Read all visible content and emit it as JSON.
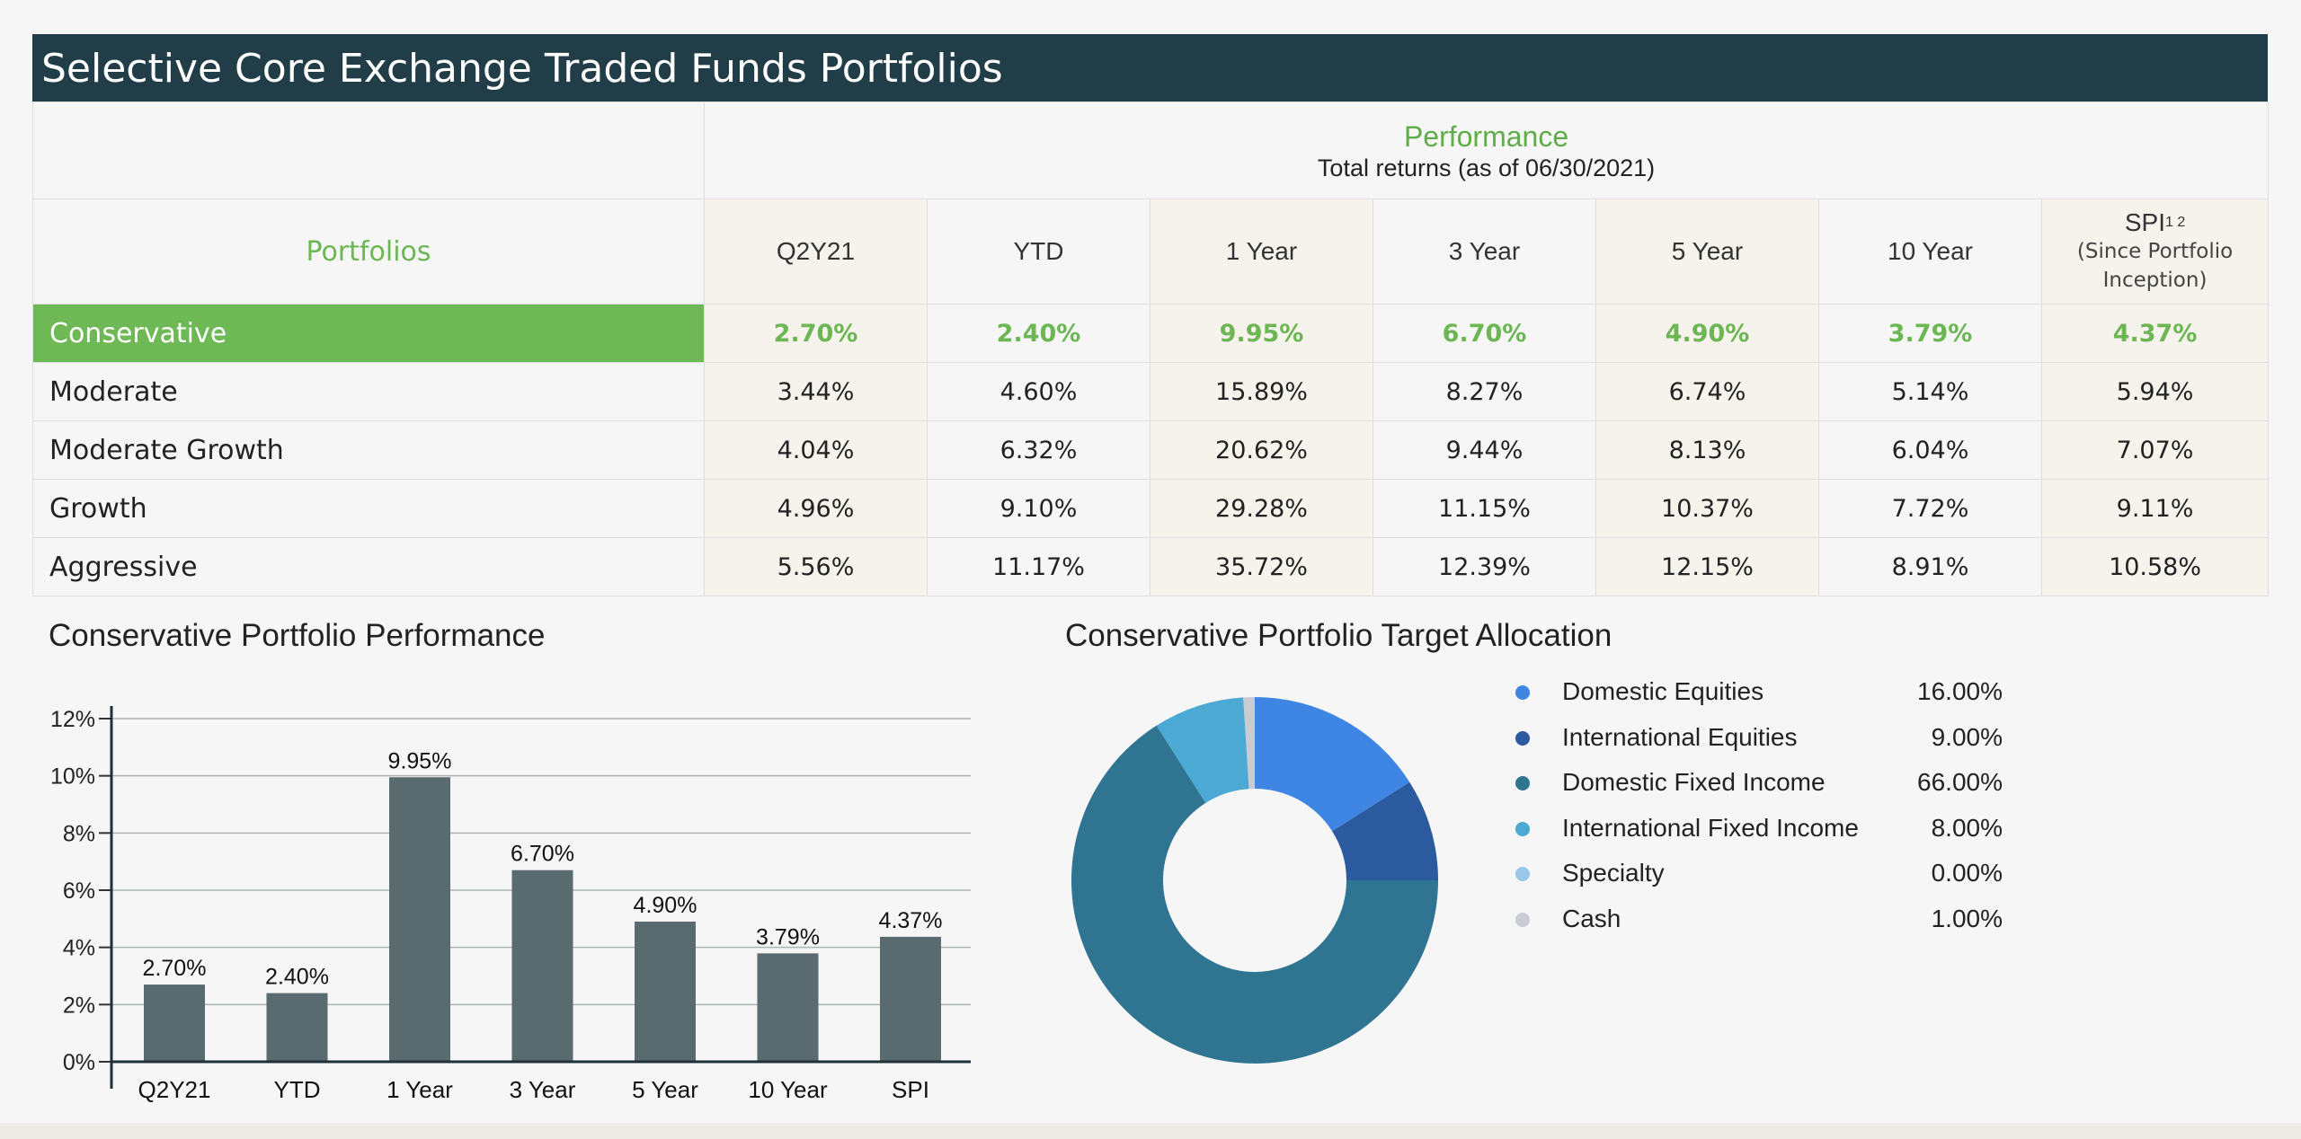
{
  "page_title": "Selective Core Exchange Traded Funds Portfolios",
  "table": {
    "performance_label": "Performance",
    "performance_sub": "Total returns (as of 06/30/2021)",
    "portfolios_label": "Portfolios",
    "columns": [
      "Q2Y21",
      "YTD",
      "1 Year",
      "3 Year",
      "5 Year",
      "10 Year"
    ],
    "spi_label": "SPI",
    "spi_sup": "1 2",
    "spi_note_line1": "(Since Portfolio",
    "spi_note_line2": "Inception)",
    "rows": [
      {
        "name": "Conservative",
        "values": [
          "2.70%",
          "2.40%",
          "9.95%",
          "6.70%",
          "4.90%",
          "3.79%",
          "4.37%"
        ]
      },
      {
        "name": "Moderate",
        "values": [
          "3.44%",
          "4.60%",
          "15.89%",
          "8.27%",
          "6.74%",
          "5.14%",
          "5.94%"
        ]
      },
      {
        "name": "Moderate Growth",
        "values": [
          "4.04%",
          "6.32%",
          "20.62%",
          "9.44%",
          "8.13%",
          "6.04%",
          "7.07%"
        ]
      },
      {
        "name": "Growth",
        "values": [
          "4.96%",
          "9.10%",
          "29.28%",
          "11.15%",
          "10.37%",
          "7.72%",
          "9.11%"
        ]
      },
      {
        "name": "Aggressive",
        "values": [
          "5.56%",
          "11.17%",
          "35.72%",
          "12.39%",
          "12.15%",
          "8.91%",
          "10.58%"
        ]
      }
    ]
  },
  "colors": {
    "header": "#213e48",
    "accent_green": "#6eb955",
    "bar": "#5a6b70"
  },
  "chart_data": [
    {
      "type": "bar",
      "title": "Conservative Portfolio Performance",
      "categories": [
        "Q2Y21",
        "YTD",
        "1 Year",
        "3 Year",
        "5 Year",
        "10 Year",
        "SPI"
      ],
      "values": [
        2.7,
        2.4,
        9.95,
        6.7,
        4.9,
        3.79,
        4.37
      ],
      "data_labels": [
        "2.70%",
        "2.40%",
        "9.95%",
        "6.70%",
        "4.90%",
        "3.79%",
        "4.37%"
      ],
      "y_ticks": [
        "0%",
        "2%",
        "4%",
        "6%",
        "8%",
        "10%",
        "12%"
      ],
      "ylim": [
        0,
        12
      ],
      "grid": true
    },
    {
      "type": "pie",
      "title": "Conservative Portfolio Target Allocation",
      "labels": [
        "Domestic Equities",
        "International Equities",
        "Domestic Fixed Income",
        "International Fixed Income",
        "Specialty",
        "Cash"
      ],
      "values": [
        16.0,
        9.0,
        66.0,
        8.0,
        0.0,
        1.0
      ],
      "value_labels": [
        "16.00%",
        "9.00%",
        "66.00%",
        "8.00%",
        "0.00%",
        "1.00%"
      ],
      "colors": [
        "#3f86e4",
        "#2c5a9e",
        "#2f7592",
        "#4ba9d3",
        "#98c7e8",
        "#c9ccd0"
      ],
      "legend_position": "right"
    }
  ]
}
